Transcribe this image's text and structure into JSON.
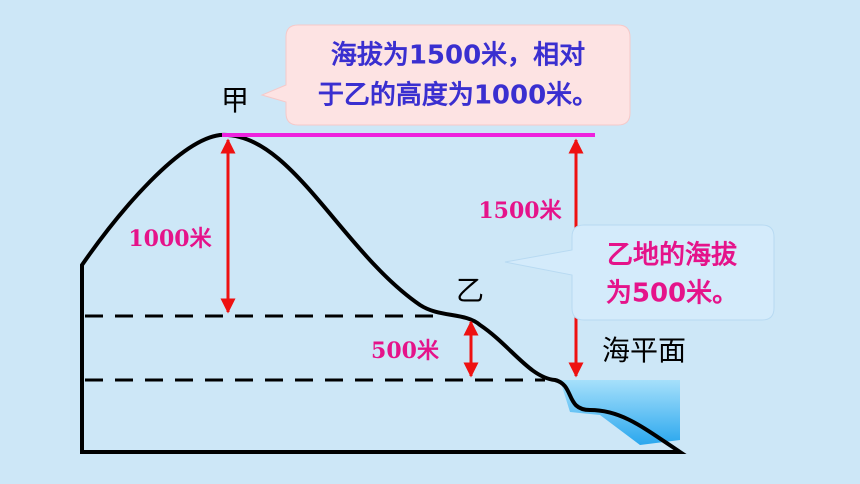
{
  "callout_top": {
    "lines": [
      "海拔为1500米，相对",
      "于乙的高度为1000米。"
    ]
  },
  "callout_right": {
    "lines": [
      "乙地的海拔",
      "为500米。"
    ]
  },
  "labels": {
    "jia": "甲",
    "yi": "乙",
    "sea_level": "海平面"
  },
  "heights": {
    "jia_relative": "1000米",
    "jia_altitude": "1500米",
    "yi_altitude": "500米"
  }
}
